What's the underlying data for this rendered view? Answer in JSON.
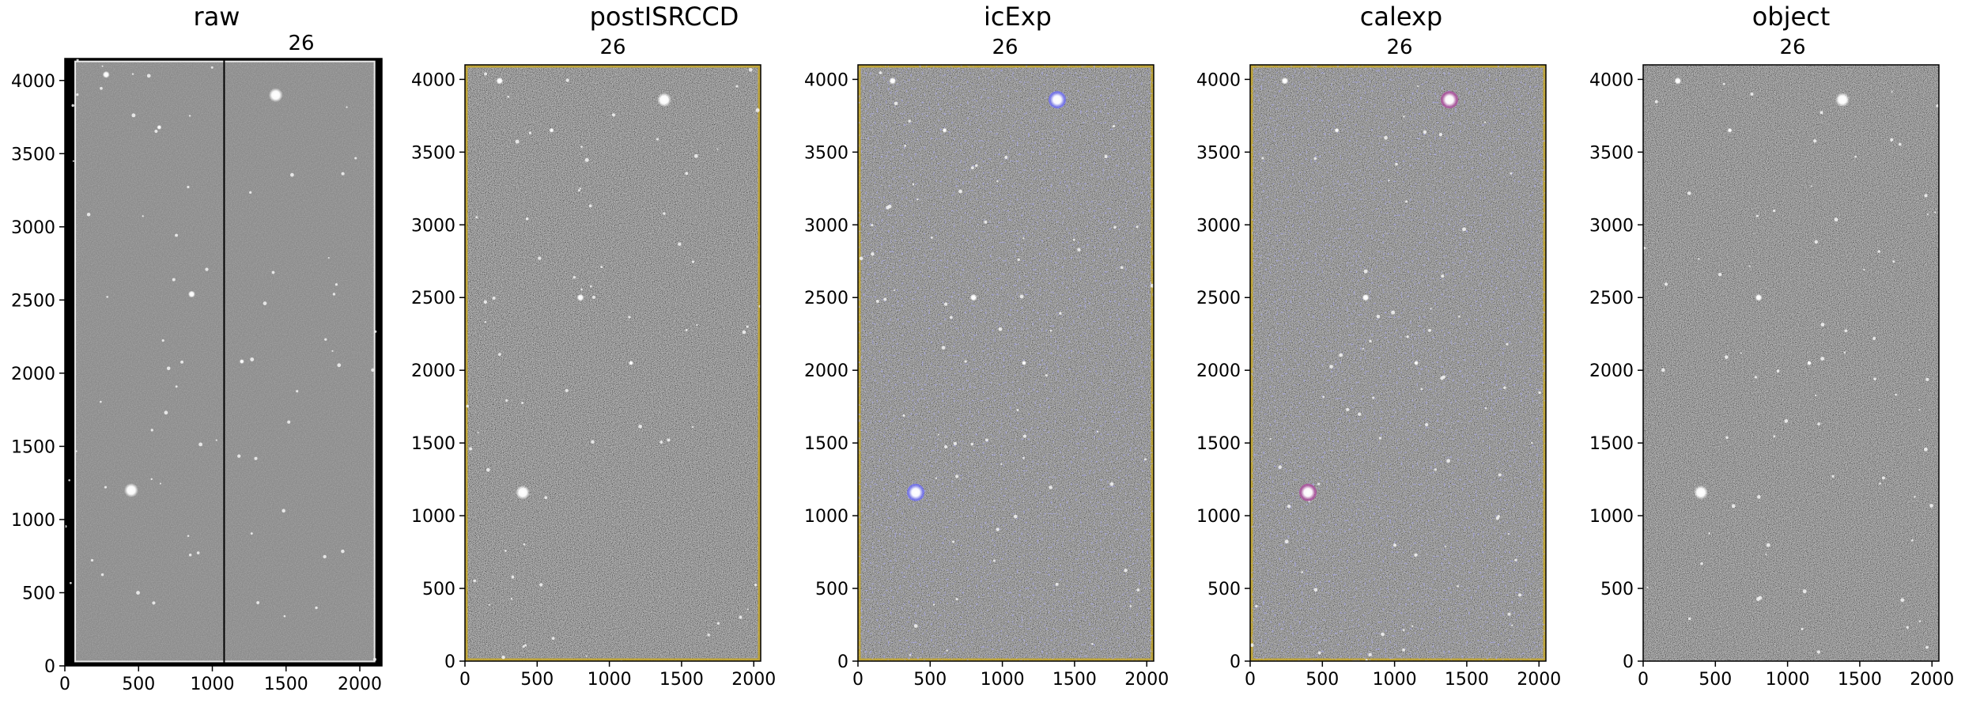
{
  "chart_data": [
    {
      "type": "image",
      "title": "raw",
      "ccd_label": "26",
      "xlim": [
        0,
        2150
      ],
      "ylim": [
        0,
        4150
      ],
      "xticks": [
        0,
        500,
        1000,
        1500,
        2000
      ],
      "yticks": [
        0,
        500,
        1000,
        1500,
        2000,
        2500,
        3000,
        3500,
        4000
      ],
      "amp_boundary_x": 1080,
      "mask_overlay": "none",
      "stars": [
        {
          "x": 1430,
          "y": 3900,
          "r": 3
        },
        {
          "x": 450,
          "y": 1200,
          "r": 3
        },
        {
          "x": 280,
          "y": 4040,
          "r": 1.5
        },
        {
          "x": 860,
          "y": 2540,
          "r": 1.5
        },
        {
          "x": 1200,
          "y": 2080,
          "r": 1
        },
        {
          "x": 640,
          "y": 3680,
          "r": 1
        }
      ]
    },
    {
      "type": "image",
      "title": "postISRCCD",
      "ccd_label": "26",
      "xlim": [
        0,
        2048
      ],
      "ylim": [
        0,
        4100
      ],
      "xticks": [
        0,
        500,
        1000,
        1500,
        2000
      ],
      "yticks": [
        0,
        500,
        1000,
        1500,
        2000,
        2500,
        3000,
        3500,
        4000
      ],
      "mask_overlay": "yellow-border",
      "stars": [
        {
          "x": 1380,
          "y": 3860,
          "r": 3
        },
        {
          "x": 400,
          "y": 1160,
          "r": 3
        },
        {
          "x": 240,
          "y": 3990,
          "r": 1.5
        },
        {
          "x": 800,
          "y": 2500,
          "r": 1.5
        },
        {
          "x": 1150,
          "y": 2050,
          "r": 1
        },
        {
          "x": 600,
          "y": 3650,
          "r": 1
        }
      ]
    },
    {
      "type": "image",
      "title": "icExp",
      "ccd_label": "26",
      "xlim": [
        0,
        2048
      ],
      "ylim": [
        0,
        4100
      ],
      "xticks": [
        0,
        500,
        1000,
        1500,
        2000
      ],
      "yticks": [
        0,
        500,
        1000,
        1500,
        2000,
        2500,
        3000,
        3500,
        4000
      ],
      "mask_overlay": "blue-detections",
      "stars": [
        {
          "x": 1380,
          "y": 3860,
          "r": 3
        },
        {
          "x": 400,
          "y": 1160,
          "r": 3
        },
        {
          "x": 240,
          "y": 3990,
          "r": 1.5
        },
        {
          "x": 800,
          "y": 2500,
          "r": 1.5
        },
        {
          "x": 1150,
          "y": 2050,
          "r": 1
        },
        {
          "x": 600,
          "y": 3650,
          "r": 1
        }
      ]
    },
    {
      "type": "image",
      "title": "calexp",
      "ccd_label": "26",
      "xlim": [
        0,
        2048
      ],
      "ylim": [
        0,
        4100
      ],
      "xticks": [
        0,
        500,
        1000,
        1500,
        2000
      ],
      "yticks": [
        0,
        500,
        1000,
        1500,
        2000,
        2500,
        3000,
        3500,
        4000
      ],
      "mask_overlay": "blue-detections-magenta-saturated",
      "stars": [
        {
          "x": 1380,
          "y": 3860,
          "r": 3
        },
        {
          "x": 400,
          "y": 1160,
          "r": 3
        },
        {
          "x": 240,
          "y": 3990,
          "r": 1.5
        },
        {
          "x": 800,
          "y": 2500,
          "r": 1.5
        },
        {
          "x": 1150,
          "y": 2050,
          "r": 1
        },
        {
          "x": 600,
          "y": 3650,
          "r": 1
        }
      ]
    },
    {
      "type": "image",
      "title": "object",
      "ccd_label": "26",
      "xlim": [
        0,
        2048
      ],
      "ylim": [
        0,
        4100
      ],
      "xticks": [
        0,
        500,
        1000,
        1500,
        2000
      ],
      "yticks": [
        0,
        500,
        1000,
        1500,
        2000,
        2500,
        3000,
        3500,
        4000
      ],
      "mask_overlay": "none",
      "stars": [
        {
          "x": 1380,
          "y": 3860,
          "r": 3
        },
        {
          "x": 400,
          "y": 1160,
          "r": 3
        },
        {
          "x": 240,
          "y": 3990,
          "r": 1.5
        },
        {
          "x": 800,
          "y": 2500,
          "r": 1.5
        },
        {
          "x": 1150,
          "y": 2050,
          "r": 1
        },
        {
          "x": 600,
          "y": 3650,
          "r": 1
        }
      ]
    }
  ],
  "colors": {
    "raw_background": "#8c8c8c",
    "processed_background": "#565656",
    "mask_border": "#c8a820",
    "detection_mask": "#6f6fff",
    "saturated_mask": "#b04aa0",
    "frame": "#000000"
  }
}
